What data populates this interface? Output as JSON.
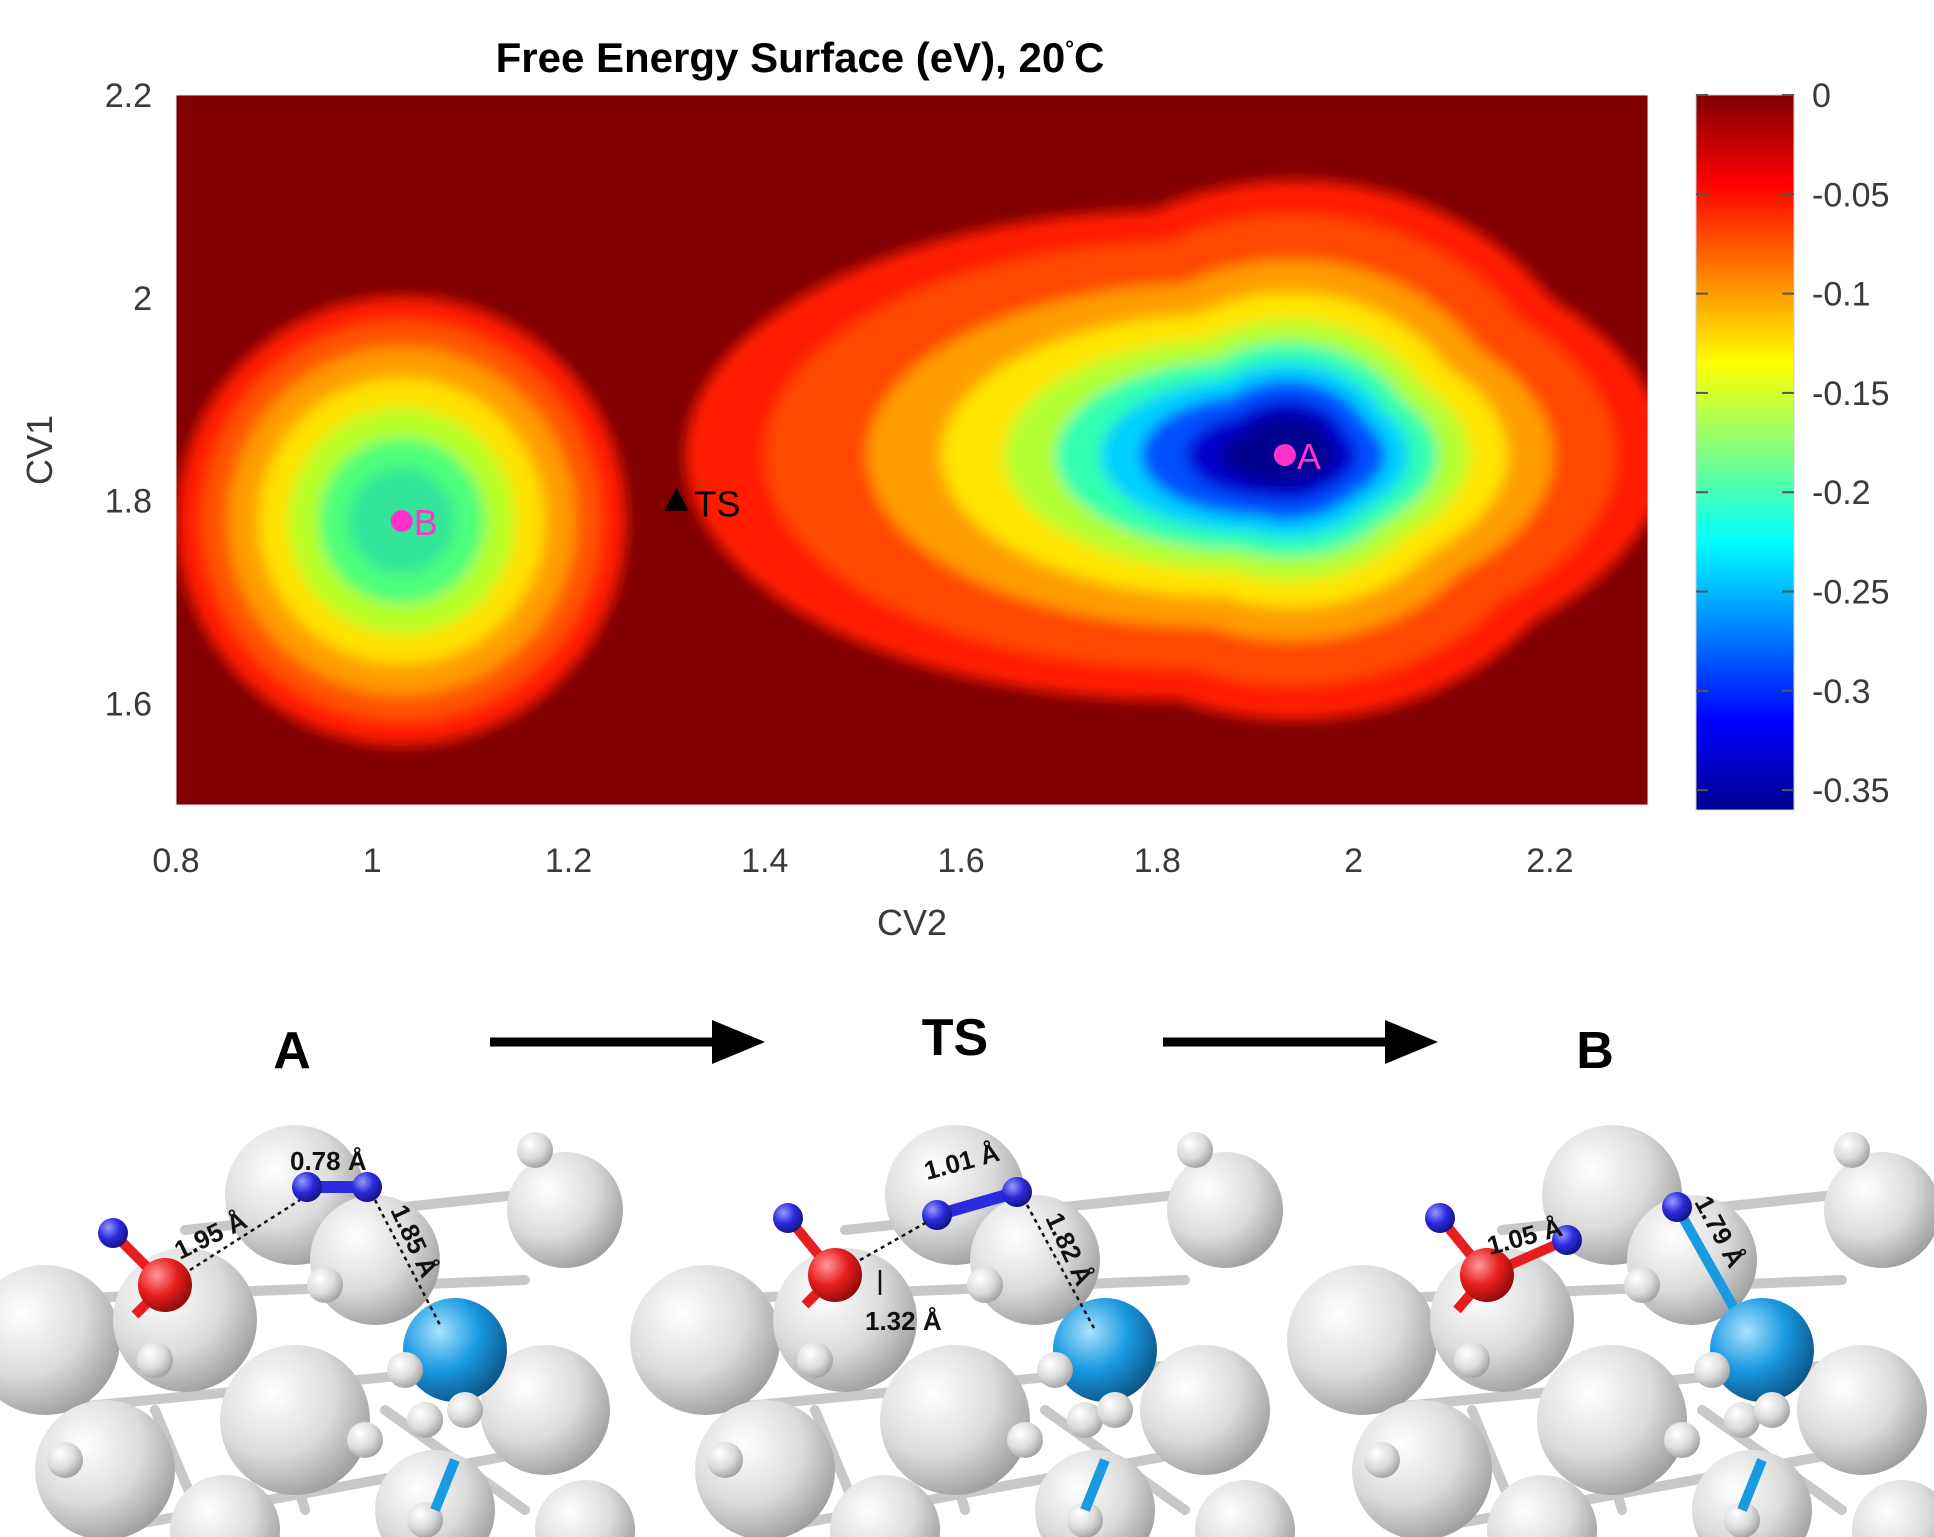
{
  "chart_data": {
    "type": "heatmap",
    "title": "Free Energy Surface (eV), 20",
    "title_degree": "°",
    "title_unit": "C",
    "xlabel": "CV2",
    "ylabel": "CV1",
    "xlim": [
      0.8,
      2.3
    ],
    "ylim": [
      1.5,
      2.2
    ],
    "xticks": [
      0.8,
      1,
      1.2,
      1.4,
      1.6,
      1.8,
      2,
      2.2
    ],
    "xtick_labels": [
      "0.8",
      "1",
      "1.2",
      "1.4",
      "1.6",
      "1.8",
      "2",
      "2.2"
    ],
    "yticks": [
      1.6,
      1.8,
      2,
      2.2
    ],
    "ytick_labels": [
      "1.6",
      "1.8",
      "2",
      "2.2"
    ],
    "colorbar": {
      "range": [
        -0.36,
        0
      ],
      "ticks": [
        0,
        -0.05,
        -0.1,
        -0.15,
        -0.2,
        -0.25,
        -0.3,
        -0.35
      ],
      "tick_labels": [
        "0",
        "-0.05",
        "-0.1",
        "-0.15",
        "-0.2",
        "-0.25",
        "-0.3",
        "-0.35"
      ],
      "colormap": "jet"
    },
    "minima": [
      {
        "label": "A",
        "cv2": 1.93,
        "cv1": 1.845,
        "energy": -0.36
      },
      {
        "label": "B",
        "cv2": 1.03,
        "cv1": 1.78,
        "energy": -0.2
      }
    ],
    "transition_state": {
      "label": "TS",
      "cv2": 1.31,
      "cv1": 1.8
    },
    "marker_color": "#ff33cc"
  },
  "reaction_path": {
    "states": [
      "A",
      "TS",
      "B"
    ],
    "panels": [
      {
        "name": "A",
        "distances": [
          "0.78 Å",
          "1.95 Å",
          "1.85 Å"
        ]
      },
      {
        "name": "TS",
        "distances": [
          "1.01 Å",
          "1.32 Å",
          "1.82 Å"
        ]
      },
      {
        "name": "B",
        "distances": [
          "1.05 Å",
          "1.79 Å"
        ]
      }
    ]
  },
  "colors": {
    "oxygen": "#e81e1e",
    "hydrogen": "#2b2bdd",
    "dopant": "#1a9ae0",
    "host": "#d6d6d6"
  }
}
